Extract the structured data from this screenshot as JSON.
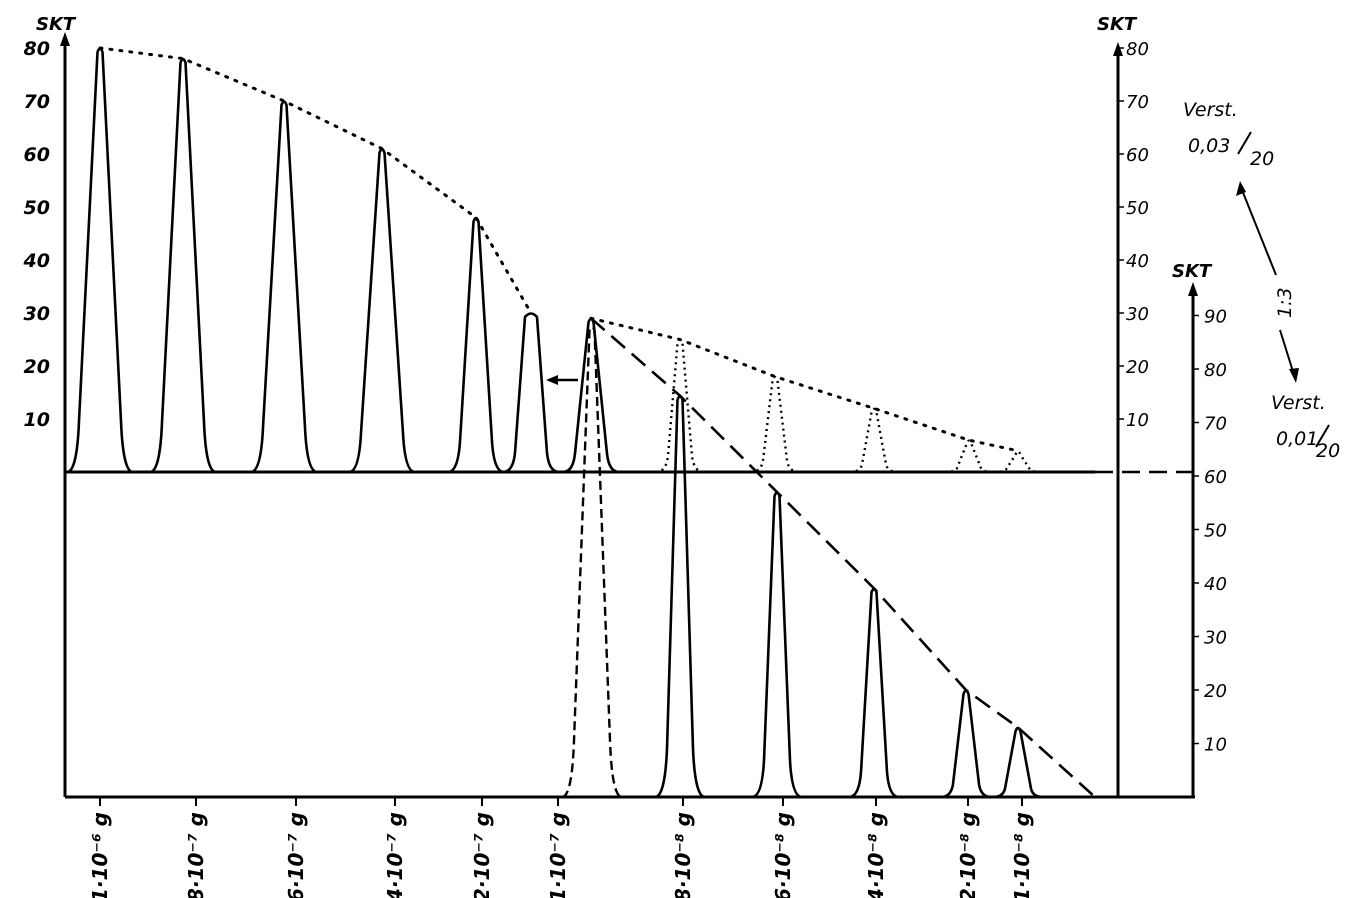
{
  "chart_data": {
    "type": "line",
    "axes": {
      "left_upper": {
        "label": "SKT",
        "range": [
          0,
          80
        ],
        "ticks": [
          10,
          20,
          30,
          40,
          50,
          60,
          70,
          80
        ]
      },
      "right_upper": {
        "label": "SKT",
        "range": [
          0,
          80
        ],
        "ticks": [
          10,
          20,
          30,
          40,
          50,
          60,
          70,
          80
        ]
      },
      "right_lower": {
        "label": "SKT",
        "range": [
          0,
          90
        ],
        "ticks": [
          10,
          20,
          30,
          40,
          50,
          60,
          70,
          80,
          90
        ]
      }
    },
    "annotations": {
      "gain_upper_prefix": "Verst.",
      "gain_upper_num": "0,03",
      "gain_upper_den": "20",
      "ratio": "1:3",
      "gain_lower_prefix": "Verst.",
      "gain_lower_num": "0,01",
      "gain_lower_den": "20"
    },
    "x_labels": [
      {
        "label": "1·10⁻⁶ g"
      },
      {
        "label": "8·10⁻⁷ g"
      },
      {
        "label": "6·10⁻⁷ g"
      },
      {
        "label": "4·10⁻⁷ g"
      },
      {
        "label": "2·10⁻⁷ g"
      },
      {
        "label": "1·10⁻⁷ g"
      },
      {
        "label": "8·10⁻⁸ g"
      },
      {
        "label": "6·10⁻⁸ g"
      },
      {
        "label": "4·10⁻⁸ g"
      },
      {
        "label": "2·10⁻⁸ g"
      },
      {
        "label": "1·10⁻⁸ g"
      }
    ],
    "series": [
      {
        "axis": "left_upper",
        "style": "solid",
        "peaks": [
          {
            "amount": "1·10⁻⁶ g",
            "height": 80
          },
          {
            "amount": "8·10⁻⁷ g",
            "height": 78
          },
          {
            "amount": "6·10⁻⁷ g",
            "height": 70
          },
          {
            "amount": "4·10⁻⁷ g",
            "height": 61
          },
          {
            "amount": "2·10⁻⁷ g",
            "height": 48
          },
          {
            "amount": "1·10⁻⁷ g",
            "height": 30
          },
          {
            "amount": "1·10⁻⁷ g",
            "height": 29
          }
        ]
      },
      {
        "axis": "left_upper",
        "style": "dotted",
        "peaks": [
          {
            "amount": "8·10⁻⁸ g",
            "height": 25
          },
          {
            "amount": "6·10⁻⁸ g",
            "height": 18
          },
          {
            "amount": "4·10⁻⁸ g",
            "height": 12
          },
          {
            "amount": "2·10⁻⁸ g",
            "height": 6
          },
          {
            "amount": "1·10⁻⁸ g",
            "height": 4
          }
        ]
      },
      {
        "axis": "right_lower",
        "style": "solid",
        "peaks": [
          {
            "amount": "8·10⁻⁸ g",
            "height": 75
          },
          {
            "amount": "6·10⁻⁸ g",
            "height": 57
          },
          {
            "amount": "4·10⁻⁸ g",
            "height": 39
          },
          {
            "amount": "2·10⁻⁸ g",
            "height": 20
          },
          {
            "amount": "1·10⁻⁸ g",
            "height": 13
          }
        ]
      },
      {
        "axis": "right_lower",
        "style": "dashed",
        "peaks": [
          {
            "amount": "1·10⁻⁷ g",
            "height": 88
          }
        ]
      }
    ],
    "envelopes": [
      {
        "style": "dotted",
        "through": "upper solid peaks"
      },
      {
        "style": "dotted",
        "through": "upper dotted peaks"
      },
      {
        "style": "dashed",
        "through": "lower solid peaks",
        "end": 0
      }
    ],
    "baseline_upper_dashed": true,
    "grid": false,
    "legend": "none"
  }
}
